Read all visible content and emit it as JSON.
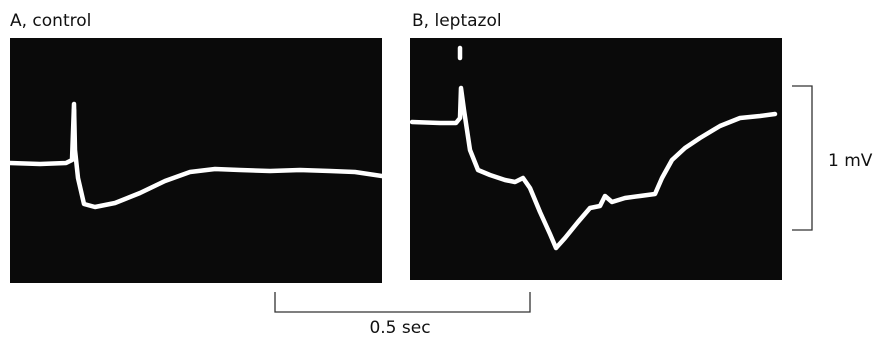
{
  "panels": [
    {
      "label": "A, control"
    },
    {
      "label": "B, leptazol"
    }
  ],
  "scale_bars": {
    "voltage": "1 mV",
    "time": "0.5 sec"
  }
}
